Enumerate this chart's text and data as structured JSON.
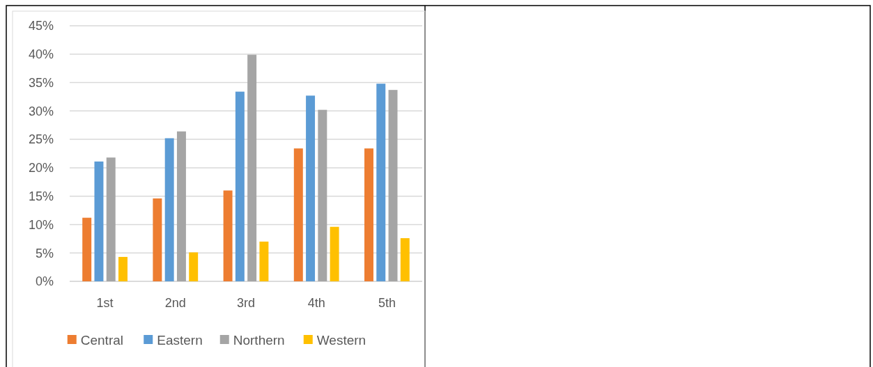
{
  "chart_data": {
    "type": "bar",
    "categories": [
      "1st",
      "2nd",
      "3rd",
      "4th",
      "5th"
    ],
    "series": [
      {
        "name": "Central",
        "color": "#ed7d31",
        "values": [
          11.2,
          14.6,
          16.0,
          23.4,
          23.4
        ]
      },
      {
        "name": "Eastern",
        "color": "#5b9bd5",
        "values": [
          21.1,
          25.2,
          33.4,
          32.7,
          34.8
        ]
      },
      {
        "name": "Northern",
        "color": "#a5a5a5",
        "values": [
          21.8,
          26.4,
          39.9,
          30.2,
          33.7
        ]
      },
      {
        "name": "Western",
        "color": "#ffc000",
        "values": [
          4.3,
          5.1,
          7.0,
          9.6,
          7.6
        ]
      }
    ],
    "ylim": [
      0,
      45
    ],
    "yticks": [
      {
        "value": 0,
        "label": "0%"
      },
      {
        "value": 5,
        "label": "5%"
      },
      {
        "value": 10,
        "label": "10%"
      },
      {
        "value": 15,
        "label": "15%"
      },
      {
        "value": 20,
        "label": "20%"
      },
      {
        "value": 25,
        "label": "25%"
      },
      {
        "value": 30,
        "label": "30%"
      },
      {
        "value": 35,
        "label": "35%"
      },
      {
        "value": 40,
        "label": "40%"
      },
      {
        "value": 45,
        "label": "45%"
      }
    ],
    "grid": "y",
    "legend": "bottom"
  }
}
